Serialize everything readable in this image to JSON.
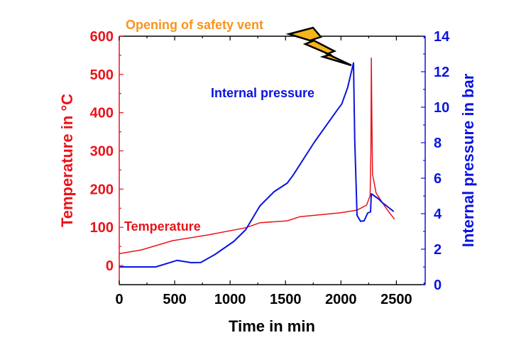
{
  "chart_data": {
    "type": "line",
    "title": "",
    "annotation": "Opening of safety vent",
    "xlabel": "Time in min",
    "ylabel_left": "Temperature in °C",
    "ylabel_right": "Internal pressure in bar",
    "xlim": [
      0,
      2760
    ],
    "ylim_left": [
      -50,
      600
    ],
    "ylim_right": [
      0,
      14
    ],
    "x_ticks": [
      0,
      500,
      1000,
      1500,
      2000,
      2500
    ],
    "y_left_ticks": [
      0,
      100,
      200,
      300,
      400,
      500,
      600
    ],
    "y_right_ticks": [
      0,
      2,
      4,
      6,
      8,
      10,
      12,
      14
    ],
    "grid": false,
    "colors": {
      "temperature": "#e8141b",
      "pressure": "#0a14e0",
      "annotation": "#f7941d",
      "bolt": "#f6b51a"
    },
    "series": [
      {
        "name": "Temperature",
        "axis": "left",
        "label": "Temperature",
        "x": [
          0,
          201,
          479,
          799,
          1141,
          1269,
          1515,
          1632,
          1996,
          2145,
          2231,
          2263,
          2270,
          2274,
          2279,
          2285,
          2317,
          2402,
          2483
        ],
        "y": [
          31,
          41,
          65,
          80,
          99,
          112,
          117,
          128,
          138,
          145,
          158,
          183,
          300,
          543,
          380,
          239,
          190,
          152,
          121
        ]
      },
      {
        "name": "Internal pressure",
        "axis": "right",
        "label": "Internal pressure",
        "x": [
          0,
          329,
          521,
          650,
          735,
          863,
          1034,
          1141,
          1269,
          1397,
          1515,
          1568,
          1761,
          1974,
          2006,
          2060,
          2113,
          2124,
          2145,
          2177,
          2209,
          2241,
          2267,
          2274,
          2338,
          2370,
          2476
        ],
        "y": [
          1.0,
          1.0,
          1.37,
          1.24,
          1.25,
          1.7,
          2.44,
          3.1,
          4.44,
          5.24,
          5.72,
          6.17,
          8.04,
          9.91,
          10.17,
          11.1,
          12.5,
          8.2,
          3.9,
          3.57,
          3.6,
          4.04,
          4.1,
          5.12,
          4.84,
          4.64,
          4.12
        ]
      }
    ]
  }
}
